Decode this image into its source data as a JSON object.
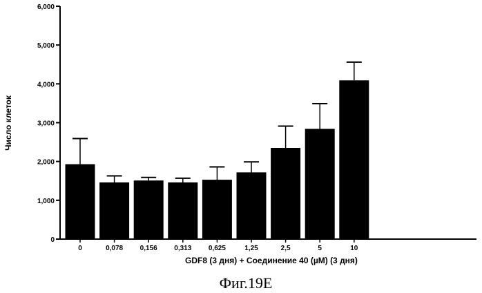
{
  "chart_data": {
    "type": "bar",
    "categories": [
      "0",
      "0,078",
      "0,156",
      "0,313",
      "0,625",
      "1,25",
      "2,5",
      "5",
      "10"
    ],
    "values": [
      1930,
      1460,
      1510,
      1460,
      1530,
      1720,
      2350,
      2840,
      4090
    ],
    "errors": [
      660,
      170,
      80,
      110,
      330,
      270,
      560,
      650,
      470
    ],
    "xlabel": "GDF8 (3 дня)  + Соединение 40 (µM) (3 дня)",
    "ylabel": "Число клеток",
    "ylim": [
      0,
      6000
    ],
    "yticks": [
      0,
      1000,
      2000,
      3000,
      4000,
      5000,
      6000
    ],
    "ytick_labels": [
      "0",
      "1,000",
      "2,000",
      "3,000",
      "4,000",
      "5,000",
      "6,000"
    ],
    "bar_color": "#000000",
    "grid": false,
    "legend": "none"
  },
  "caption": "Фиг.19E"
}
